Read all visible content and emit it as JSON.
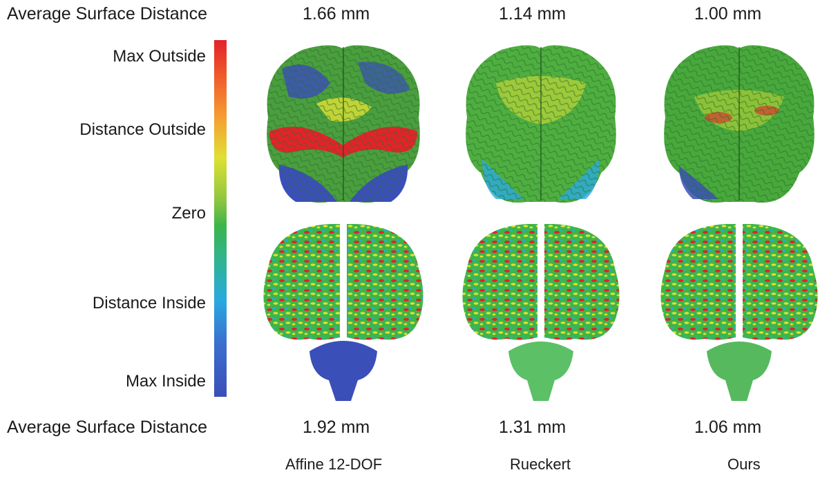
{
  "top_row": {
    "label": "Average Surface Distance",
    "values": [
      "1.66 mm",
      "1.14 mm",
      "1.00 mm"
    ]
  },
  "bottom_row": {
    "label": "Average Surface Distance",
    "values": [
      "1.92 mm",
      "1.31 mm",
      "1.06 mm"
    ]
  },
  "colorbar": {
    "labels": [
      "Max Outside",
      "Distance Outside",
      "Zero",
      "Distance Inside",
      "Max Inside"
    ],
    "colors": [
      "#e2232a",
      "#f5a032",
      "#dfe034",
      "#3db54a",
      "#2aa9e0",
      "#3b4fb8"
    ]
  },
  "methods": [
    "Affine 12-DOF",
    "Rueckert",
    "Ours"
  ]
}
